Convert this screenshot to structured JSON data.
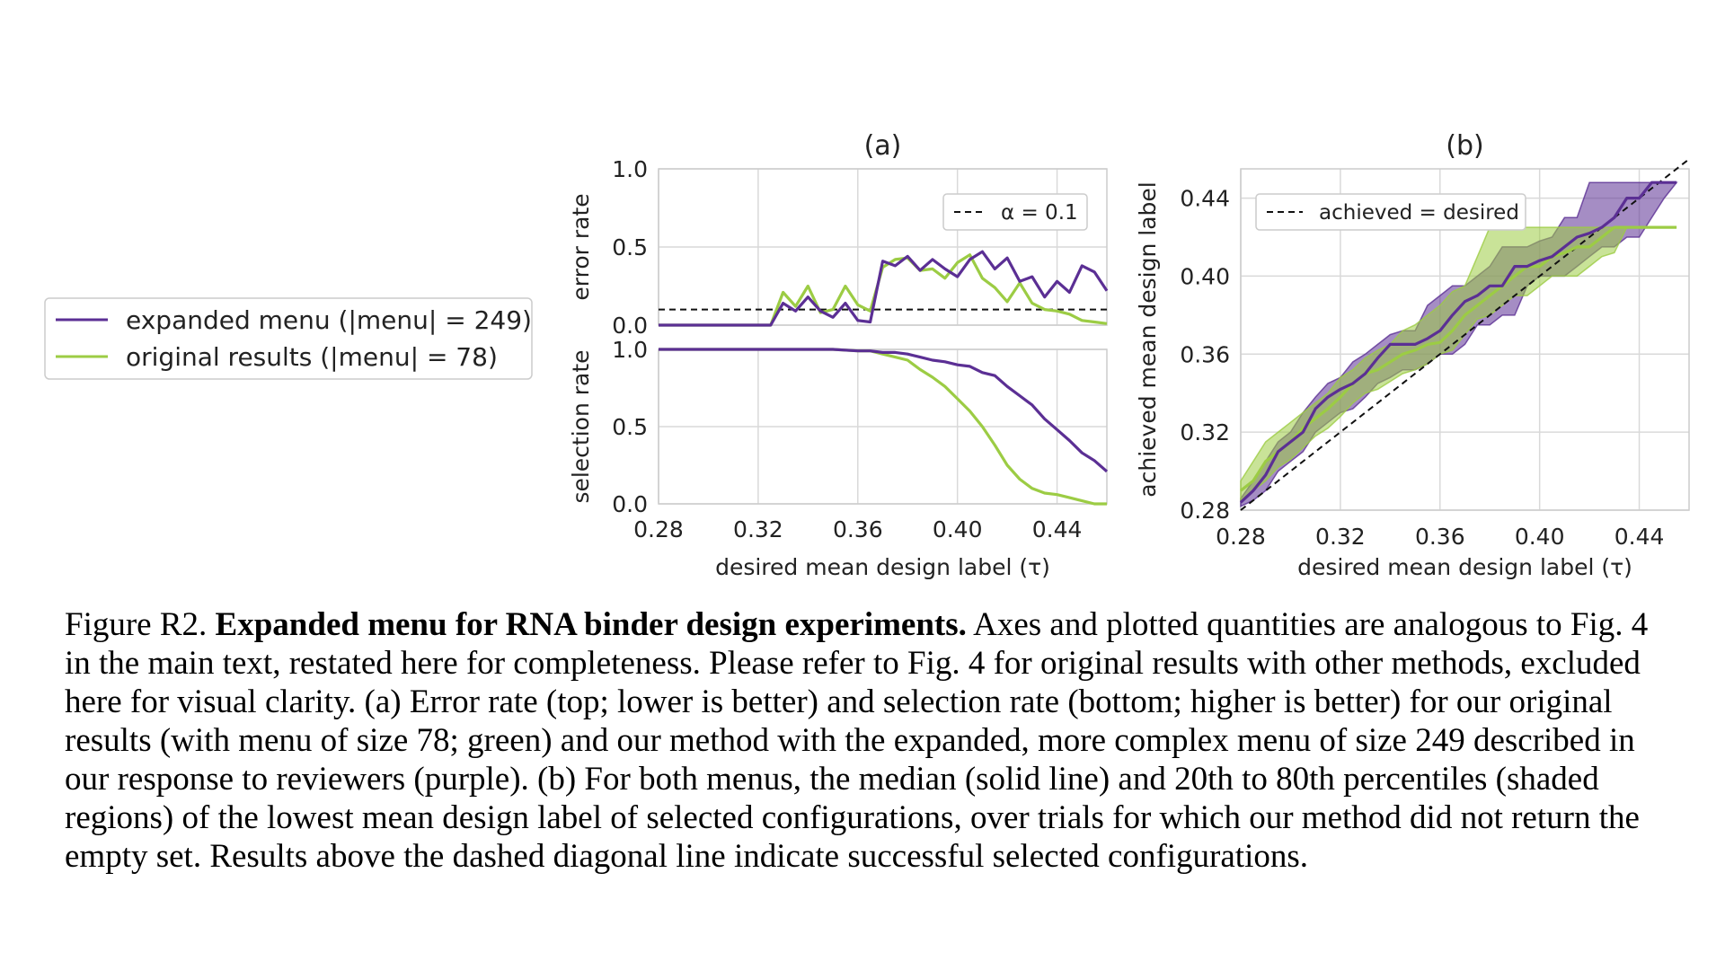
{
  "chart_data": [
    {
      "id": "a-top",
      "type": "line",
      "panel_title": "(a)",
      "ylabel": "error rate",
      "xlim": [
        0.28,
        0.46
      ],
      "ylim": [
        0.0,
        1.0
      ],
      "yticks": [
        "0.0",
        "0.5",
        "1.0"
      ],
      "reference_line": {
        "label": "α = 0.1",
        "value": 0.1,
        "style": "dashed"
      },
      "legend_position": "upper right",
      "x": [
        0.28,
        0.285,
        0.29,
        0.295,
        0.3,
        0.305,
        0.31,
        0.315,
        0.32,
        0.325,
        0.33,
        0.335,
        0.34,
        0.345,
        0.35,
        0.355,
        0.36,
        0.365,
        0.37,
        0.375,
        0.38,
        0.385,
        0.39,
        0.395,
        0.4,
        0.405,
        0.41,
        0.415,
        0.42,
        0.425,
        0.43,
        0.435,
        0.44,
        0.445,
        0.45,
        0.455,
        0.46
      ],
      "series": [
        {
          "name": "expanded menu (|menu| = 249)",
          "color": "#5b2f94",
          "values": [
            0,
            0,
            0,
            0,
            0,
            0,
            0,
            0,
            0,
            0,
            0.14,
            0.09,
            0.18,
            0.09,
            0.05,
            0.14,
            0.03,
            0.02,
            0.41,
            0.38,
            0.44,
            0.35,
            0.42,
            0.36,
            0.31,
            0.42,
            0.47,
            0.36,
            0.43,
            0.28,
            0.31,
            0.18,
            0.28,
            0.21,
            0.38,
            0.34,
            0.22
          ]
        },
        {
          "name": "original results (|menu| = 78)",
          "color": "#9ccc44",
          "values": [
            0,
            0,
            0,
            0,
            0,
            0,
            0,
            0,
            0,
            0,
            0.21,
            0.12,
            0.25,
            0.08,
            0.1,
            0.25,
            0.13,
            0.09,
            0.37,
            0.42,
            0.43,
            0.35,
            0.36,
            0.3,
            0.4,
            0.45,
            0.3,
            0.24,
            0.15,
            0.27,
            0.14,
            0.1,
            0.09,
            0.07,
            0.03,
            0.02,
            0.01
          ]
        }
      ]
    },
    {
      "id": "a-bottom",
      "type": "line",
      "ylabel": "selection rate",
      "xlabel": "desired mean design label (τ)",
      "xlim": [
        0.28,
        0.46
      ],
      "ylim": [
        0.0,
        1.0
      ],
      "xticks": [
        "0.28",
        "0.32",
        "0.36",
        "0.40",
        "0.44"
      ],
      "yticks": [
        "0.0",
        "0.5",
        "1.0"
      ],
      "x": [
        0.28,
        0.3,
        0.32,
        0.34,
        0.35,
        0.36,
        0.365,
        0.37,
        0.375,
        0.38,
        0.385,
        0.39,
        0.395,
        0.4,
        0.405,
        0.41,
        0.415,
        0.42,
        0.425,
        0.43,
        0.435,
        0.44,
        0.445,
        0.45,
        0.455,
        0.46
      ],
      "series": [
        {
          "name": "expanded menu (|menu| = 249)",
          "color": "#5b2f94",
          "values": [
            1,
            1,
            1,
            1,
            1,
            0.99,
            0.99,
            0.98,
            0.98,
            0.97,
            0.95,
            0.93,
            0.92,
            0.9,
            0.89,
            0.85,
            0.83,
            0.76,
            0.7,
            0.64,
            0.55,
            0.48,
            0.41,
            0.33,
            0.28,
            0.21
          ]
        },
        {
          "name": "original results (|menu| = 78)",
          "color": "#9ccc44",
          "values": [
            1,
            1,
            1,
            1,
            1,
            0.99,
            0.99,
            0.97,
            0.95,
            0.93,
            0.87,
            0.82,
            0.76,
            0.68,
            0.6,
            0.5,
            0.38,
            0.25,
            0.16,
            0.1,
            0.07,
            0.06,
            0.04,
            0.02,
            0.0,
            0.0
          ]
        }
      ]
    },
    {
      "id": "b",
      "type": "area",
      "panel_title": "(b)",
      "xlabel": "desired mean design label (τ)",
      "ylabel": "achieved mean design label",
      "xlim": [
        0.28,
        0.46
      ],
      "ylim": [
        0.28,
        0.455
      ],
      "xticks": [
        "0.28",
        "0.32",
        "0.36",
        "0.40",
        "0.44"
      ],
      "yticks": [
        "0.28",
        "0.32",
        "0.36",
        "0.40",
        "0.44"
      ],
      "reference_line": {
        "label": "achieved = desired",
        "style": "dashed diagonal"
      },
      "legend_position": "upper left",
      "x": [
        0.28,
        0.285,
        0.29,
        0.295,
        0.3,
        0.305,
        0.31,
        0.315,
        0.32,
        0.325,
        0.33,
        0.335,
        0.34,
        0.345,
        0.35,
        0.355,
        0.36,
        0.365,
        0.37,
        0.375,
        0.38,
        0.385,
        0.39,
        0.395,
        0.4,
        0.405,
        0.41,
        0.415,
        0.42,
        0.425,
        0.43,
        0.435,
        0.44,
        0.445,
        0.45,
        0.455
      ],
      "series": [
        {
          "name": "expanded menu (|menu| = 249)",
          "color": "#5b2f94",
          "median": [
            0.284,
            0.29,
            0.298,
            0.31,
            0.315,
            0.32,
            0.332,
            0.338,
            0.342,
            0.345,
            0.35,
            0.358,
            0.365,
            0.365,
            0.365,
            0.368,
            0.372,
            0.38,
            0.387,
            0.39,
            0.395,
            0.395,
            0.405,
            0.405,
            0.408,
            0.41,
            0.415,
            0.42,
            0.422,
            0.425,
            0.43,
            0.44,
            0.44,
            0.448,
            0.448,
            0.448
          ],
          "p20": [
            0.282,
            0.285,
            0.29,
            0.3,
            0.305,
            0.31,
            0.32,
            0.325,
            0.33,
            0.332,
            0.338,
            0.345,
            0.348,
            0.352,
            0.352,
            0.355,
            0.36,
            0.36,
            0.365,
            0.375,
            0.375,
            0.38,
            0.38,
            0.395,
            0.4,
            0.4,
            0.4,
            0.405,
            0.41,
            0.415,
            0.415,
            0.42,
            0.42,
            0.43,
            0.44,
            0.448
          ],
          "p80": [
            0.286,
            0.295,
            0.305,
            0.315,
            0.32,
            0.33,
            0.338,
            0.345,
            0.348,
            0.356,
            0.36,
            0.365,
            0.37,
            0.372,
            0.372,
            0.385,
            0.39,
            0.395,
            0.395,
            0.4,
            0.405,
            0.415,
            0.415,
            0.415,
            0.418,
            0.42,
            0.43,
            0.43,
            0.448,
            0.448,
            0.448,
            0.448,
            0.448,
            0.448,
            0.448,
            0.448
          ]
        },
        {
          "name": "original results (|menu| = 78)",
          "color": "#9ccc44",
          "median": [
            0.29,
            0.295,
            0.305,
            0.31,
            0.315,
            0.322,
            0.327,
            0.332,
            0.338,
            0.345,
            0.35,
            0.352,
            0.356,
            0.36,
            0.362,
            0.365,
            0.366,
            0.372,
            0.38,
            0.385,
            0.39,
            0.395,
            0.4,
            0.405,
            0.405,
            0.41,
            0.412,
            0.415,
            0.415,
            0.42,
            0.425,
            0.425,
            0.425,
            0.425,
            0.425,
            0.425
          ],
          "p20": [
            0.285,
            0.29,
            0.295,
            0.302,
            0.306,
            0.312,
            0.318,
            0.322,
            0.328,
            0.335,
            0.34,
            0.342,
            0.346,
            0.35,
            0.352,
            0.355,
            0.36,
            0.362,
            0.37,
            0.378,
            0.38,
            0.385,
            0.39,
            0.39,
            0.395,
            0.4,
            0.4,
            0.4,
            0.405,
            0.41,
            0.412,
            0.425,
            0.425,
            0.425,
            0.425,
            0.425
          ],
          "p80": [
            0.295,
            0.305,
            0.315,
            0.32,
            0.325,
            0.33,
            0.335,
            0.34,
            0.348,
            0.352,
            0.358,
            0.362,
            0.365,
            0.372,
            0.375,
            0.38,
            0.385,
            0.392,
            0.395,
            0.41,
            0.425,
            0.425,
            0.425,
            0.425,
            0.425,
            0.425,
            0.425,
            0.425,
            0.425,
            0.425,
            0.425,
            0.425,
            0.425,
            0.425,
            0.425,
            0.425
          ]
        }
      ]
    }
  ],
  "legend": {
    "items": [
      {
        "label": "expanded menu (|menu| = 249)",
        "color": "#5b2f94"
      },
      {
        "label": "original results (|menu| = 78)",
        "color": "#9ccc44"
      }
    ]
  },
  "caption": {
    "prefix": "Figure R2.",
    "bold": "Expanded menu for RNA binder design experiments.",
    "body": "Axes and plotted quantities are analogous to Fig. 4 in the main text, restated here for completeness. Please refer to Fig. 4 for original results with other methods, excluded here for visual clarity. (a) Error rate (top; lower is better) and selection rate (bottom; higher is better) for our original results (with menu of size 78; green) and our method with the expanded, more complex menu of size 249 described in our response to reviewers (purple). (b) For both menus, the median (solid line) and 20th to 80th percentiles (shaded regions) of the lowest mean design label of selected configurations, over trials for which our method did not return the empty set. Results above the dashed diagonal line indicate successful selected configurations."
  }
}
